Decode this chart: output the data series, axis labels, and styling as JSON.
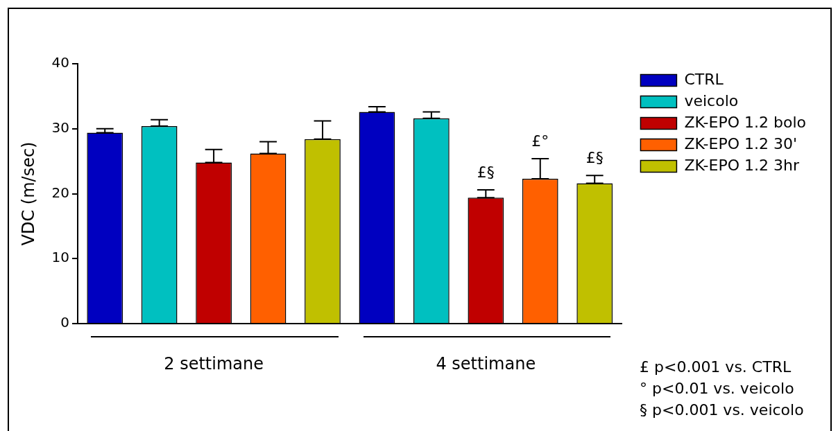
{
  "chart_data": {
    "type": "bar",
    "ylabel": "VDC (m/sec)",
    "categories": [
      "2 settimane",
      "4 settimane"
    ],
    "series": [
      {
        "name": "CTRL",
        "color": "#0000c0",
        "values": [
          29.4,
          32.6
        ],
        "errors": [
          [
            29.4,
            30.0
          ],
          [
            32.6,
            33.4
          ]
        ]
      },
      {
        "name": "veicolo",
        "color": "#00c0c0",
        "values": [
          30.4,
          31.6
        ],
        "errors": [
          [
            30.4,
            31.4
          ],
          [
            31.6,
            32.6
          ]
        ]
      },
      {
        "name": "ZK-EPO 1.2 bolo",
        "color": "#c00000",
        "values": [
          24.8,
          19.4
        ],
        "errors": [
          [
            24.8,
            26.8
          ],
          [
            19.4,
            20.6
          ]
        ]
      },
      {
        "name": "ZK-EPO 1.2 30'",
        "color": "#ff6000",
        "values": [
          26.2,
          22.3
        ],
        "errors": [
          [
            26.2,
            28.0
          ],
          [
            22.3,
            25.4
          ]
        ]
      },
      {
        "name": "ZK-EPO 1.2 3hr",
        "color": "#c0c000",
        "values": [
          28.4,
          21.6
        ],
        "errors": [
          [
            28.4,
            31.2
          ],
          [
            21.6,
            22.8
          ]
        ]
      }
    ],
    "ylim": [
      0,
      40
    ],
    "yticks": [
      0,
      10,
      20,
      30,
      40
    ],
    "legend": "top right",
    "annotations": [
      {
        "text": "£§",
        "x": "4 settimane",
        "y": 19.4
      },
      "£°",
      "£§",
      "£ p<0.001 vs. CTRL",
      "° p<0.01 vs. veicolo",
      "§ p<0.001 vs. veicolo"
    ]
  }
}
